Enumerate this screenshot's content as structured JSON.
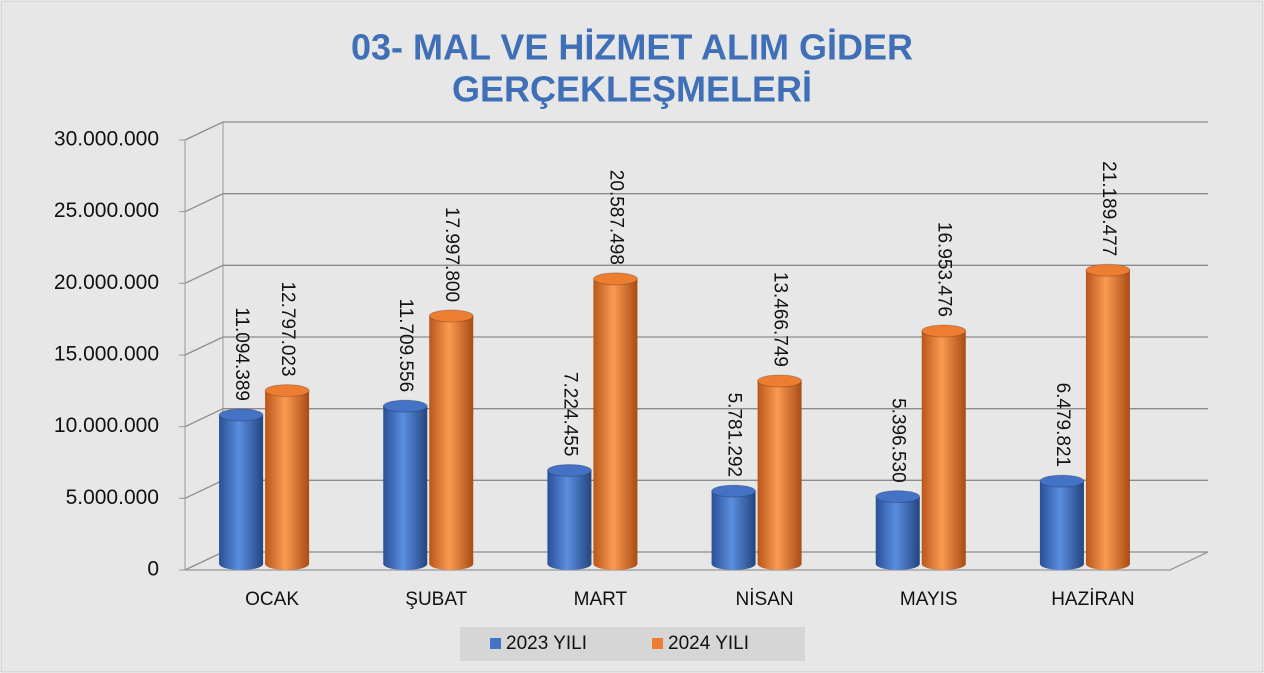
{
  "chart_data": {
    "type": "bar",
    "title": [
      "03- MAL VE HİZMET ALIM GİDER",
      "GERÇEKLEŞMELERİ"
    ],
    "categories": [
      "OCAK",
      "ŞUBAT",
      "MART",
      "NİSAN",
      "MAYIS",
      "HAZİRAN"
    ],
    "series": [
      {
        "name": "2023 YILI",
        "color": "#4472c4",
        "values": [
          11094389,
          11709556,
          7224455,
          5781292,
          5396530,
          6479821
        ],
        "value_labels": [
          "11.094.389",
          "11.709.556",
          "7.224.455",
          "5.781.292",
          "5.396.530",
          "6.479.821"
        ]
      },
      {
        "name": "2024 YILI",
        "color": "#ed7d31",
        "values": [
          12797023,
          17997800,
          20587498,
          13466749,
          16953476,
          21189477
        ],
        "value_labels": [
          "12.797.023",
          "17.997.800",
          "20.587.498",
          "13.466.749",
          "16.953.476",
          "21.189.477"
        ]
      }
    ],
    "ylim": [
      0,
      30000000
    ],
    "yticks": [
      0,
      {
        "value": 5000000,
        "label": "5.000.000"
      },
      {
        "value": 10000000,
        "label": "10.000.000"
      },
      {
        "value": 15000000,
        "label": "15.000.000"
      },
      {
        "value": 20000000,
        "label": "20.000.000"
      },
      {
        "value": 25000000,
        "label": "25.000.000"
      },
      {
        "value": 30000000,
        "label": "30.000.000"
      }
    ],
    "grid": true,
    "legend": "bottom"
  }
}
